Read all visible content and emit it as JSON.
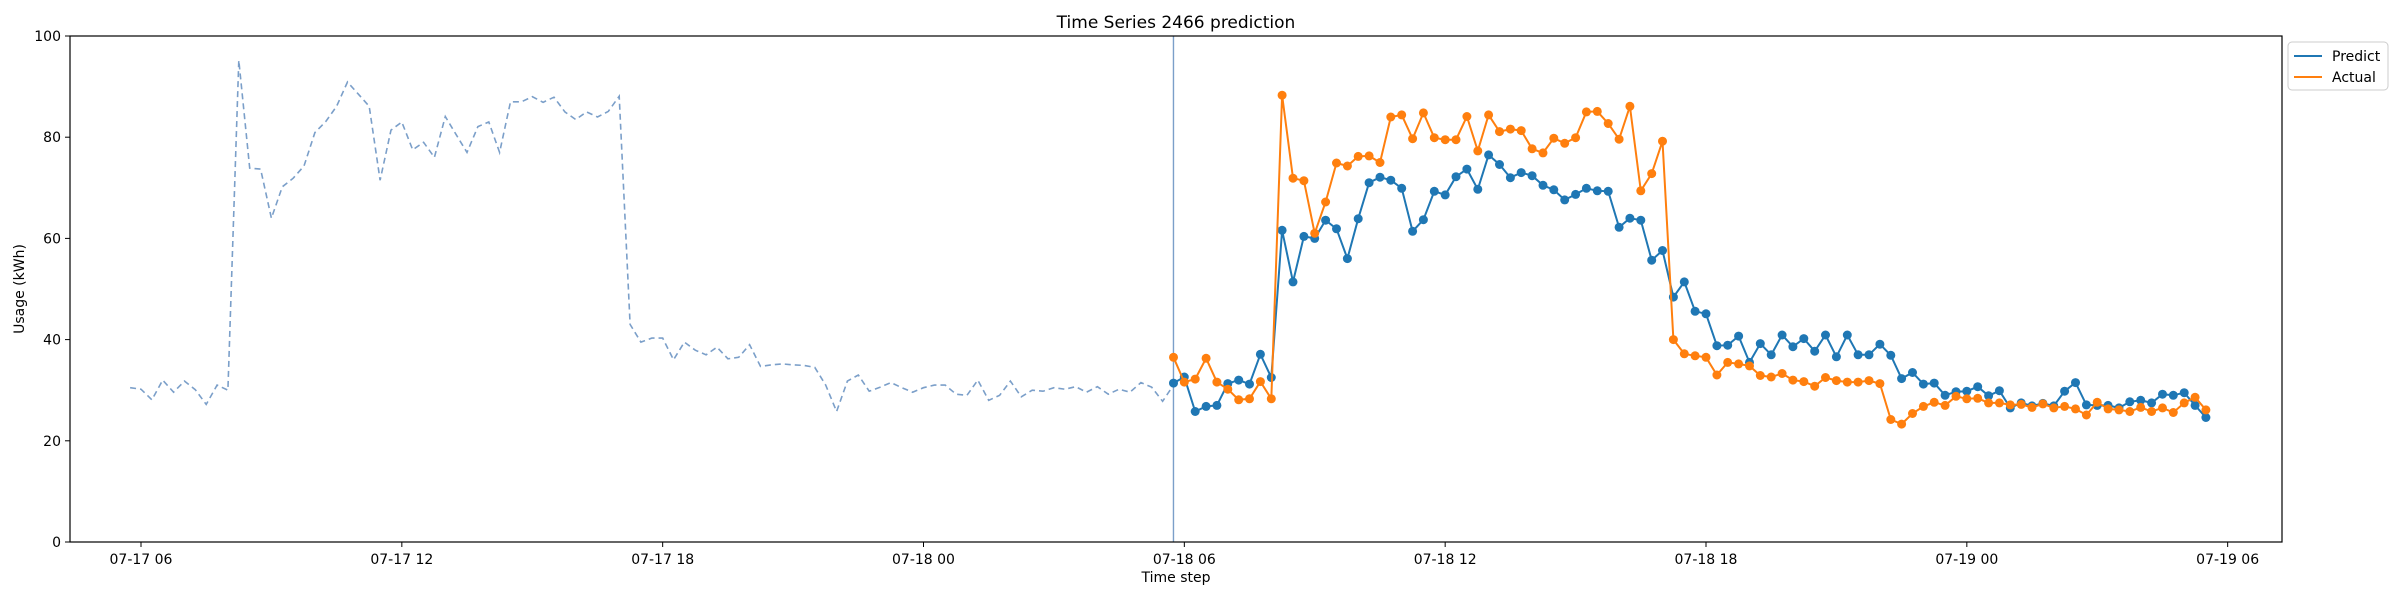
{
  "chart_data": {
    "type": "line",
    "title": "Time Series 2466 prediction",
    "xlabel": "Time step",
    "ylabel": "Usage (kWh)",
    "ylim": [
      0,
      100
    ],
    "yticks": [
      0,
      20,
      40,
      60,
      80,
      100
    ],
    "xlim": [
      "2024-07-17 04:22",
      "2024-07-19 07:15"
    ],
    "xticks": [
      {
        "t": "2024-07-17 06:00",
        "label": "07-17 06"
      },
      {
        "t": "2024-07-17 12:00",
        "label": "07-17 12"
      },
      {
        "t": "2024-07-17 18:00",
        "label": "07-17 18"
      },
      {
        "t": "2024-07-18 00:00",
        "label": "07-18 00"
      },
      {
        "t": "2024-07-18 06:00",
        "label": "07-18 06"
      },
      {
        "t": "2024-07-18 12:00",
        "label": "07-18 12"
      },
      {
        "t": "2024-07-18 18:00",
        "label": "07-18 18"
      },
      {
        "t": "2024-07-19 00:00",
        "label": "07-19 00"
      },
      {
        "t": "2024-07-19 06:00",
        "label": "07-19 06"
      }
    ],
    "grid": false,
    "legend_position": "top-right outside",
    "forecast_start": "2024-07-18 05:45",
    "colors": {
      "history": "#7b9fc9",
      "predict": "#1f77b4",
      "actual": "#ff7f0e",
      "divider": "#7b9fc9"
    },
    "history": {
      "start": "2024-07-17 05:45",
      "step_minutes": 15,
      "values": [
        30.5,
        30.2,
        28.1,
        32.0,
        29.6,
        31.8,
        30.1,
        27.2,
        31.0,
        30.0,
        95.2,
        73.9,
        73.7,
        64.0,
        70.2,
        71.9,
        74.3,
        80.9,
        83.1,
        86.1,
        90.9,
        88.5,
        86.1,
        71.5,
        81.4,
        83.0,
        77.5,
        79.0,
        76.0,
        84.1,
        80.5,
        77.0,
        82.1,
        83.0,
        77.0,
        87.0,
        87.0,
        88.0,
        86.9,
        87.9,
        85.0,
        83.5,
        85.0,
        84.0,
        85.1,
        88.1,
        43.0,
        39.5,
        40.3,
        40.3,
        36.0,
        39.5,
        37.9,
        37.0,
        38.5,
        36.2,
        36.5,
        39.0,
        34.7,
        35.0,
        35.2,
        35.0,
        34.9,
        34.5,
        31.0,
        25.8,
        31.8,
        33.0,
        29.8,
        30.6,
        31.5,
        30.5,
        29.6,
        30.5,
        31.0,
        31.0,
        29.2,
        29.0,
        32.0,
        28.0,
        29.0,
        31.8,
        28.7,
        30.0,
        29.8,
        30.5,
        30.2,
        30.7,
        29.6,
        30.7,
        29.2,
        30.2,
        29.6,
        31.5,
        30.6,
        27.8,
        31.0
      ]
    },
    "series": [
      {
        "name": "Predict",
        "start": "2024-07-18 05:45",
        "step_minutes": 15,
        "values": [
          31.4,
          32.6,
          25.8,
          26.8,
          27.0,
          31.3,
          32.0,
          31.2,
          37.1,
          32.5,
          61.6,
          51.4,
          60.4,
          60.0,
          63.6,
          61.9,
          56.0,
          63.9,
          71.0,
          72.1,
          71.5,
          69.9,
          61.4,
          63.7,
          69.3,
          68.6,
          72.2,
          73.7,
          69.7,
          76.5,
          74.6,
          72.0,
          73.0,
          72.4,
          70.5,
          69.6,
          67.6,
          68.7,
          69.9,
          69.4,
          69.3,
          62.2,
          64.0,
          63.6,
          55.7,
          57.6,
          48.4,
          51.4,
          45.6,
          45.1,
          38.8,
          38.9,
          40.7,
          35.5,
          39.2,
          37.0,
          40.9,
          38.6,
          40.2,
          37.7,
          40.9,
          36.6,
          40.9,
          37.0,
          37.0,
          39.1,
          36.9,
          32.3,
          33.5,
          31.2,
          31.4,
          29.0,
          29.7,
          29.8,
          30.7,
          28.9,
          29.9,
          26.5,
          27.5,
          26.9,
          27.4,
          26.9,
          29.8,
          31.5,
          27.1,
          27.0,
          27.0,
          26.5,
          27.7,
          28.0,
          27.5,
          29.2,
          29.0,
          29.5,
          27.0,
          24.6
        ]
      },
      {
        "name": "Actual",
        "start": "2024-07-18 05:45",
        "step_minutes": 15,
        "values": [
          36.5,
          31.6,
          32.2,
          36.3,
          31.6,
          30.2,
          28.1,
          28.3,
          31.7,
          28.3,
          88.3,
          71.9,
          71.4,
          61.0,
          67.2,
          74.9,
          74.3,
          76.2,
          76.3,
          75.0,
          84.0,
          84.4,
          79.7,
          84.8,
          79.9,
          79.5,
          79.5,
          84.1,
          77.3,
          84.4,
          81.1,
          81.6,
          81.3,
          77.7,
          76.9,
          79.8,
          78.8,
          79.9,
          85.0,
          85.1,
          82.7,
          79.6,
          86.1,
          69.4,
          72.8,
          79.2,
          40.0,
          37.2,
          36.8,
          36.5,
          33.0,
          35.5,
          35.2,
          34.8,
          32.9,
          32.6,
          33.3,
          32.0,
          31.7,
          30.8,
          32.5,
          31.9,
          31.6,
          31.6,
          31.9,
          31.3,
          24.2,
          23.3,
          25.4,
          26.8,
          27.6,
          27.0,
          28.8,
          28.3,
          28.4,
          27.5,
          27.5,
          27.1,
          27.2,
          26.6,
          27.3,
          26.5,
          26.8,
          26.3,
          25.1,
          27.6,
          26.3,
          26.1,
          25.8,
          26.6,
          25.8,
          26.5,
          25.6,
          27.5,
          28.6,
          26.1
        ]
      }
    ]
  }
}
